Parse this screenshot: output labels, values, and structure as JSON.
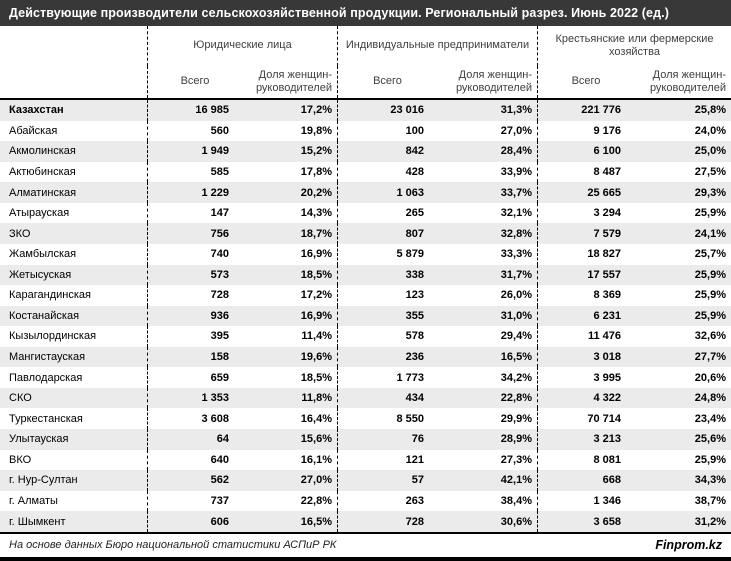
{
  "title": "Действующие производители сельскохозяйственной продукции. Региональный разрез. Июнь 2022 (ед.)",
  "footer": {
    "source": "На основе данных Бюро национальной статистики АСПиР РК",
    "brand": "Finprom.kz"
  },
  "colors": {
    "title_bar_bg": "#383838",
    "stripe": "#ebebeb",
    "border": "#000000"
  },
  "chart_data": {
    "type": "table",
    "title": "Действующие производители сельскохозяйственной продукции. Региональный разрез. Июнь 2022 (ед.)",
    "column_groups": [
      "Юридические лица",
      "Индивидуальные предприниматели",
      "Крестьянские или фермерские хозяйства"
    ],
    "subcolumns": [
      "Всего",
      "Доля женщин-руководителей"
    ],
    "region_column_label": "",
    "rows": [
      {
        "region": "Казахстан",
        "jur_total": "16 985",
        "jur_share": "17,2%",
        "ip_total": "23 016",
        "ip_share": "31,3%",
        "kfh_total": "221 776",
        "kfh_share": "25,8%",
        "bold": true
      },
      {
        "region": "Абайская",
        "jur_total": "560",
        "jur_share": "19,8%",
        "ip_total": "100",
        "ip_share": "27,0%",
        "kfh_total": "9 176",
        "kfh_share": "24,0%",
        "bold": false
      },
      {
        "region": "Акмолинская",
        "jur_total": "1 949",
        "jur_share": "15,2%",
        "ip_total": "842",
        "ip_share": "28,4%",
        "kfh_total": "6 100",
        "kfh_share": "25,0%",
        "bold": false
      },
      {
        "region": "Актюбинская",
        "jur_total": "585",
        "jur_share": "17,8%",
        "ip_total": "428",
        "ip_share": "33,9%",
        "kfh_total": "8 487",
        "kfh_share": "27,5%",
        "bold": false
      },
      {
        "region": "Алматинская",
        "jur_total": "1 229",
        "jur_share": "20,2%",
        "ip_total": "1 063",
        "ip_share": "33,7%",
        "kfh_total": "25 665",
        "kfh_share": "29,3%",
        "bold": false
      },
      {
        "region": "Атырауская",
        "jur_total": "147",
        "jur_share": "14,3%",
        "ip_total": "265",
        "ip_share": "32,1%",
        "kfh_total": "3 294",
        "kfh_share": "25,9%",
        "bold": false
      },
      {
        "region": "ЗКО",
        "jur_total": "756",
        "jur_share": "18,7%",
        "ip_total": "807",
        "ip_share": "32,8%",
        "kfh_total": "7 579",
        "kfh_share": "24,1%",
        "bold": false
      },
      {
        "region": "Жамбылская",
        "jur_total": "740",
        "jur_share": "16,9%",
        "ip_total": "5 879",
        "ip_share": "33,3%",
        "kfh_total": "18 827",
        "kfh_share": "25,7%",
        "bold": false
      },
      {
        "region": "Жетысуская",
        "jur_total": "573",
        "jur_share": "18,5%",
        "ip_total": "338",
        "ip_share": "31,7%",
        "kfh_total": "17 557",
        "kfh_share": "25,9%",
        "bold": false
      },
      {
        "region": "Карагандинская",
        "jur_total": "728",
        "jur_share": "17,2%",
        "ip_total": "123",
        "ip_share": "26,0%",
        "kfh_total": "8 369",
        "kfh_share": "25,9%",
        "bold": false
      },
      {
        "region": "Костанайская",
        "jur_total": "936",
        "jur_share": "16,9%",
        "ip_total": "355",
        "ip_share": "31,0%",
        "kfh_total": "6 231",
        "kfh_share": "25,9%",
        "bold": false
      },
      {
        "region": "Кызылординская",
        "jur_total": "395",
        "jur_share": "11,4%",
        "ip_total": "578",
        "ip_share": "29,4%",
        "kfh_total": "11 476",
        "kfh_share": "32,6%",
        "bold": false
      },
      {
        "region": "Мангистауская",
        "jur_total": "158",
        "jur_share": "19,6%",
        "ip_total": "236",
        "ip_share": "16,5%",
        "kfh_total": "3 018",
        "kfh_share": "27,7%",
        "bold": false
      },
      {
        "region": "Павлодарская",
        "jur_total": "659",
        "jur_share": "18,5%",
        "ip_total": "1 773",
        "ip_share": "34,2%",
        "kfh_total": "3 995",
        "kfh_share": "20,6%",
        "bold": false
      },
      {
        "region": "СКО",
        "jur_total": "1 353",
        "jur_share": "11,8%",
        "ip_total": "434",
        "ip_share": "22,8%",
        "kfh_total": "4 322",
        "kfh_share": "24,8%",
        "bold": false
      },
      {
        "region": "Туркестанская",
        "jur_total": "3 608",
        "jur_share": "16,4%",
        "ip_total": "8 550",
        "ip_share": "29,9%",
        "kfh_total": "70 714",
        "kfh_share": "23,4%",
        "bold": false
      },
      {
        "region": "Улытауская",
        "jur_total": "64",
        "jur_share": "15,6%",
        "ip_total": "76",
        "ip_share": "28,9%",
        "kfh_total": "3 213",
        "kfh_share": "25,6%",
        "bold": false
      },
      {
        "region": "ВКО",
        "jur_total": "640",
        "jur_share": "16,1%",
        "ip_total": "121",
        "ip_share": "27,3%",
        "kfh_total": "8 081",
        "kfh_share": "25,9%",
        "bold": false
      },
      {
        "region": "г. Нур-Султан",
        "jur_total": "562",
        "jur_share": "27,0%",
        "ip_total": "57",
        "ip_share": "42,1%",
        "kfh_total": "668",
        "kfh_share": "34,3%",
        "bold": false
      },
      {
        "region": "г. Алматы",
        "jur_total": "737",
        "jur_share": "22,8%",
        "ip_total": "263",
        "ip_share": "38,4%",
        "kfh_total": "1 346",
        "kfh_share": "38,7%",
        "bold": false
      },
      {
        "region": "г. Шымкент",
        "jur_total": "606",
        "jur_share": "16,5%",
        "ip_total": "728",
        "ip_share": "30,6%",
        "kfh_total": "3 658",
        "kfh_share": "31,2%",
        "bold": false
      }
    ]
  }
}
